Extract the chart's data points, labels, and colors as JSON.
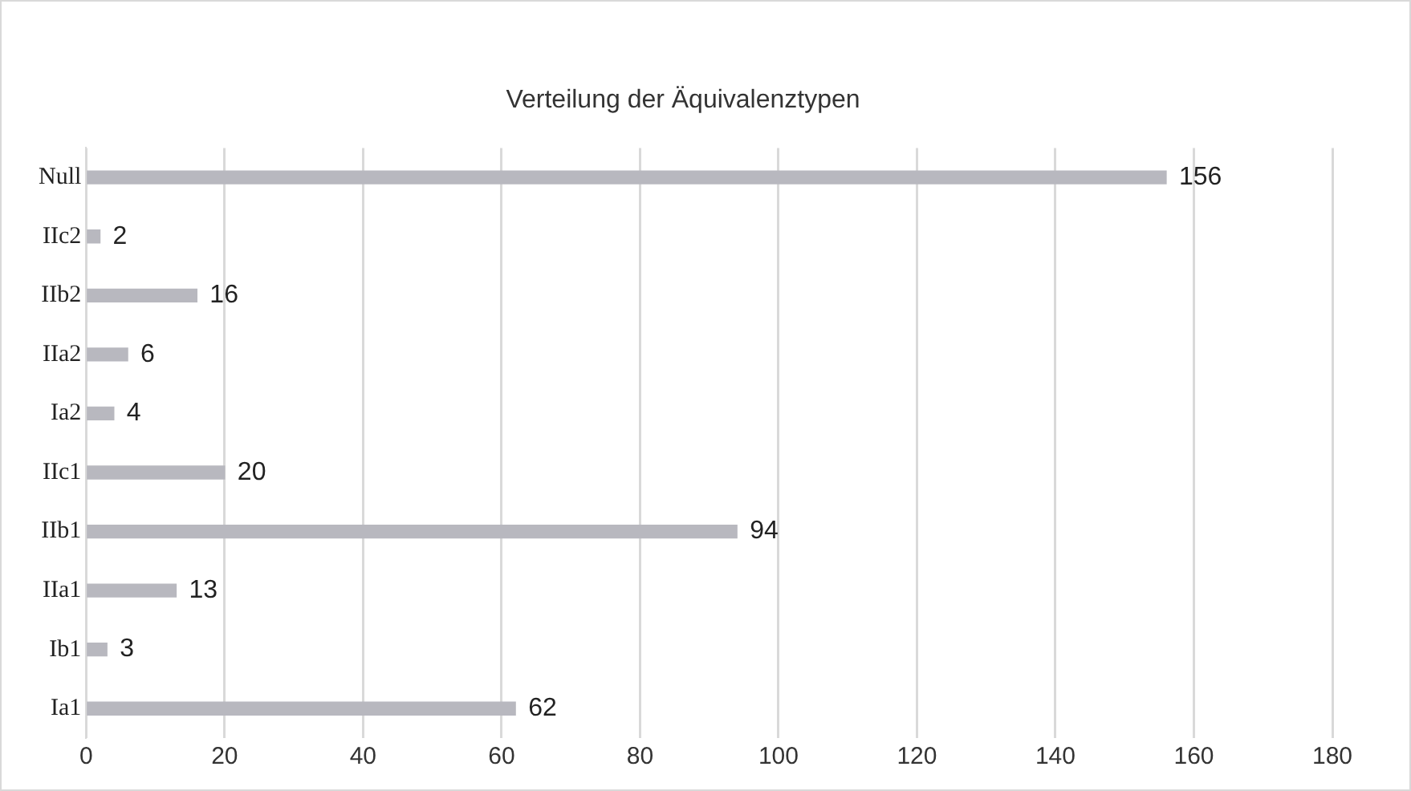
{
  "chart_data": {
    "type": "bar",
    "orientation": "horizontal",
    "title": "Verteilung der Äquivalenztypen",
    "categories": [
      "Null",
      "IIc2",
      "IIb2",
      "IIa2",
      "Ia2",
      "IIc1",
      "IIb1",
      "IIa1",
      "Ib1",
      "Ia1"
    ],
    "values": [
      156,
      2,
      16,
      6,
      4,
      20,
      94,
      13,
      3,
      62
    ],
    "color": "#b8b8bf",
    "xlim": [
      0,
      180
    ],
    "xticks": [
      0,
      20,
      40,
      60,
      80,
      100,
      120,
      140,
      160,
      180
    ],
    "grid": "x",
    "data_labels": true,
    "legend": false
  }
}
